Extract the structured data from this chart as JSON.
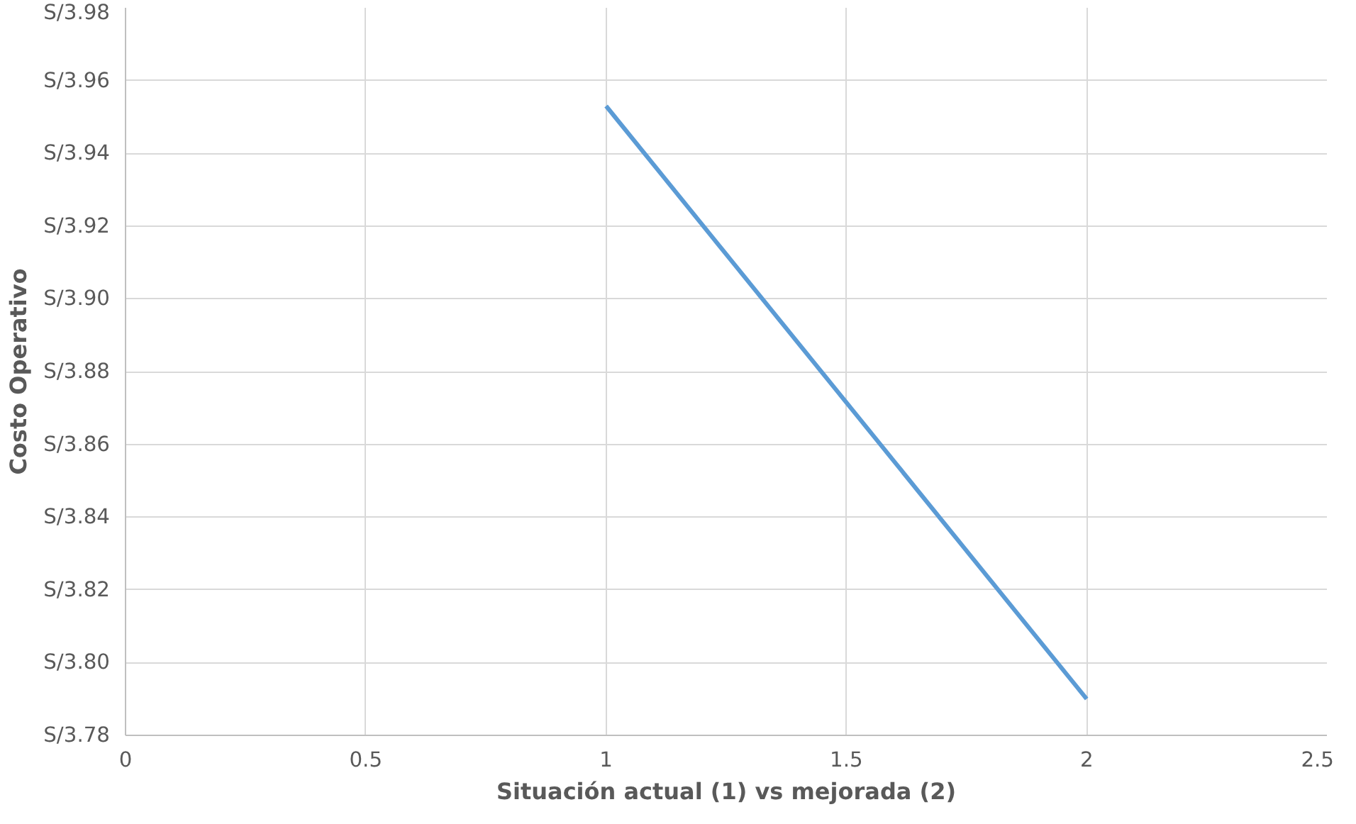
{
  "chart_data": {
    "type": "line",
    "xlabel": "Situación actual (1) vs mejorada (2)",
    "ylabel": "Costo Operativo",
    "x": [
      1,
      2
    ],
    "series": [
      {
        "color": "#5b9bd5",
        "values": [
          3.953,
          3.79
        ]
      }
    ],
    "xlim": [
      0,
      2.5
    ],
    "xticks": [
      0,
      0.5,
      1,
      1.5,
      2,
      2.5
    ],
    "ylim": [
      3.78,
      3.98
    ],
    "yticks": [
      {
        "value": 3.78,
        "label": "S/3.78"
      },
      {
        "value": 3.8,
        "label": "S/3.80"
      },
      {
        "value": 3.82,
        "label": "S/3.82"
      },
      {
        "value": 3.84,
        "label": "S/3.84"
      },
      {
        "value": 3.86,
        "label": "S/3.86"
      },
      {
        "value": 3.88,
        "label": "S/3.88"
      },
      {
        "value": 3.9,
        "label": "S/3.90"
      },
      {
        "value": 3.92,
        "label": "S/3.92"
      },
      {
        "value": 3.94,
        "label": "S/3.94"
      },
      {
        "value": 3.96,
        "label": "S/3.96"
      },
      {
        "value": 3.98,
        "label": "S/3.98"
      }
    ],
    "grid": true,
    "marker": "none",
    "line_style": "solid"
  }
}
